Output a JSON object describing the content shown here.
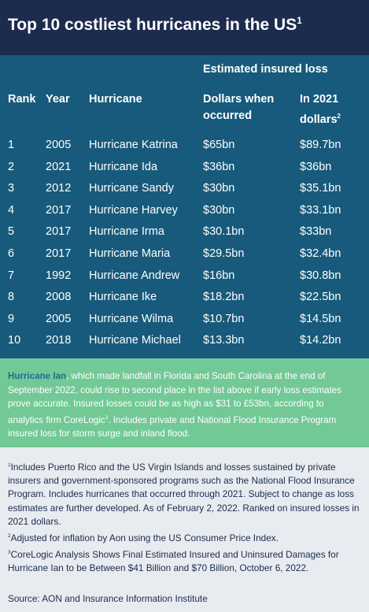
{
  "header": {
    "title": "Top 10 costliest hurricanes in the US",
    "title_marker": "1"
  },
  "table": {
    "group_header": "Estimated insured loss",
    "columns": [
      {
        "label": "Rank"
      },
      {
        "label": "Year"
      },
      {
        "label": "Hurricane"
      },
      {
        "label": "Dollars when occurred"
      },
      {
        "label": "In 2021 dollars",
        "marker": "2"
      }
    ],
    "rows": [
      [
        1,
        2005,
        "Hurricane Katrina",
        "$65bn",
        "$89.7bn"
      ],
      [
        2,
        2021,
        "Hurricane Ida",
        "$36bn",
        "$36bn"
      ],
      [
        3,
        2012,
        "Hurricane Sandy",
        "$30bn",
        "$35.1bn"
      ],
      [
        4,
        2017,
        "Hurricane Harvey",
        "$30bn",
        "$33.1bn"
      ],
      [
        5,
        2017,
        "Hurricane Irma",
        "$30.1bn",
        "$33bn"
      ],
      [
        6,
        2017,
        "Hurricane Maria",
        "$29.5bn",
        "$32.4bn"
      ],
      [
        7,
        1992,
        "Hurricane Andrew",
        "$16bn",
        "$30.8bn"
      ],
      [
        8,
        2008,
        "Hurricane Ike",
        "$18.2bn",
        "$22.5bn"
      ],
      [
        9,
        2005,
        "Hurricane Wilma",
        "$10.7bn",
        "$14.5bn"
      ],
      [
        10,
        2018,
        "Hurricane Michael",
        "$13.3bn",
        "$14.2bn"
      ]
    ]
  },
  "callout": {
    "highlight": "Hurricane Ian",
    "text": ", which made landfall in Florida and South Carolina at the end of September 2022, could rise to second place in the list above if early loss estimates prove accurate. Insured losses could be as high as $31 to £53bn, according to analytics firm CoreLogic",
    "marker": "3",
    "text_end": ". Includes private and National Flood Insurance Program insured loss for storm surge and inland flood."
  },
  "footnotes": [
    {
      "marker": "1",
      "text": "Includes Puerto Rico and the US Virgin Islands and losses sustained by private insurers and government-sponsored programs such as the National Flood Insurance Program. Includes hurricanes that occurred through 2021. Subject to change as loss estimates are further developed. As of February 2, 2022. Ranked on insured losses in 2021 dollars."
    },
    {
      "marker": "2",
      "text": "Adjusted for inflation by Aon using the US Consumer Price Index."
    },
    {
      "marker": "3",
      "text": "CoreLogic Analysis Shows Final Estimated Insured and Uninsured Damages for Hurricane Ian to be Between $41 Billion and $70 Billion, October 6, 2022."
    }
  ],
  "source": "Source: AON and Insurance Information Institute"
}
